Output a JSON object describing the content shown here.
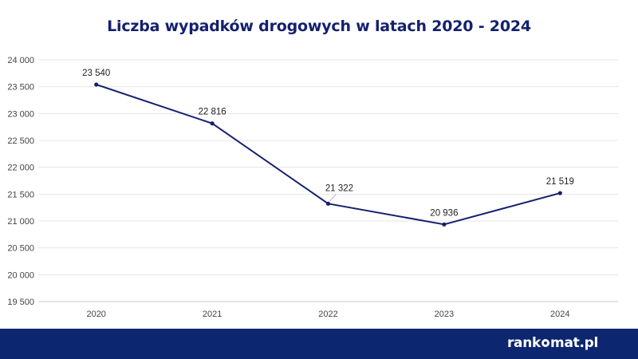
{
  "chart_data": {
    "type": "line",
    "title": "Liczba wypadków drogowych w latach 2020 - 2024",
    "xlabel": "",
    "ylabel": "",
    "categories": [
      "2020",
      "2021",
      "2022",
      "2023",
      "2024"
    ],
    "values": [
      23540,
      22816,
      21322,
      20936,
      21519
    ],
    "data_labels": [
      "23 540",
      "22 816",
      "21 322",
      "20 936",
      "21 519"
    ],
    "ylim": [
      19500,
      24000
    ],
    "yticks": [
      19500,
      20000,
      20500,
      21000,
      21500,
      22000,
      22500,
      23000,
      23500,
      24000
    ],
    "ytick_labels": [
      "19 500",
      "20 000",
      "20 500",
      "21 000",
      "21 500",
      "22 000",
      "22 500",
      "23 000",
      "23 500",
      "24 000"
    ],
    "grid": true,
    "legend": "none",
    "line_color": "#14206e"
  },
  "footer": {
    "brand_prefix": "rank",
    "brand_suffix": "mat.pl",
    "background": "#0c2670"
  }
}
